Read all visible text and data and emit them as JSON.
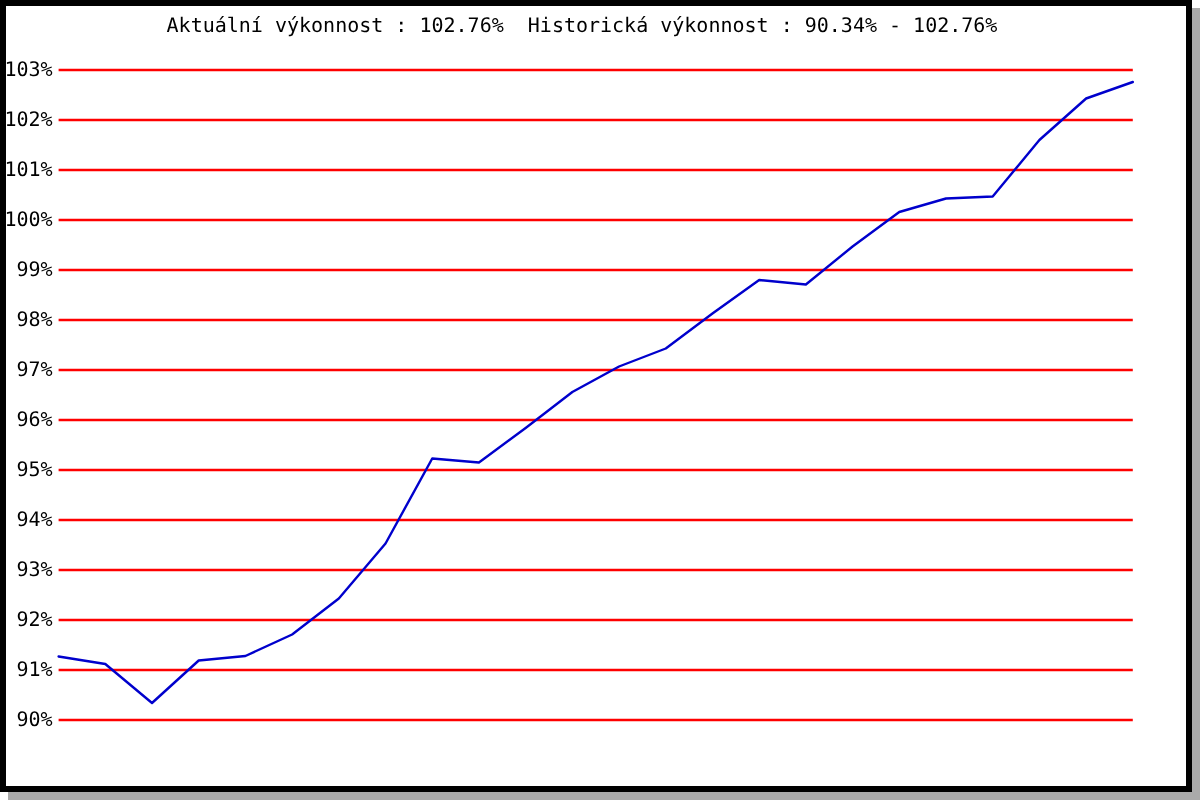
{
  "chart_data": {
    "type": "line",
    "title": "Aktuální výkonnost : 102.76%  Historická výkonnost : 90.34% - 102.76%",
    "categories": [
      null,
      null,
      null,
      null,
      null,
      null,
      null,
      null,
      null,
      null,
      null,
      null,
      null,
      null,
      null,
      null,
      null,
      null,
      null,
      null,
      null,
      null,
      null,
      null
    ],
    "series": [
      {
        "color": "#0000cc",
        "values": [
          91.27,
          91.12,
          90.34,
          91.19,
          91.28,
          91.71,
          92.43,
          93.53,
          95.23,
          95.15,
          95.84,
          96.56,
          97.07,
          97.43,
          98.13,
          98.8,
          98.71,
          99.47,
          100.16,
          100.43,
          100.47,
          101.6,
          102.43,
          102.76
        ]
      }
    ],
    "ylim": [
      90,
      103
    ],
    "yticks": [
      {
        "value": 90,
        "label": "90%"
      },
      {
        "value": 91,
        "label": "91%"
      },
      {
        "value": 92,
        "label": "92%"
      },
      {
        "value": 93,
        "label": "93%"
      },
      {
        "value": 94,
        "label": "94%"
      },
      {
        "value": 95,
        "label": "95%"
      },
      {
        "value": 96,
        "label": "96%"
      },
      {
        "value": 97,
        "label": "97%"
      },
      {
        "value": 98,
        "label": "98%"
      },
      {
        "value": 99,
        "label": "99%"
      },
      {
        "value": 100,
        "label": "100%"
      },
      {
        "value": 101,
        "label": "101%"
      },
      {
        "value": 102,
        "label": "102%"
      },
      {
        "value": 103,
        "label": "103%"
      }
    ],
    "grid": "y",
    "tick_labels": "y"
  }
}
